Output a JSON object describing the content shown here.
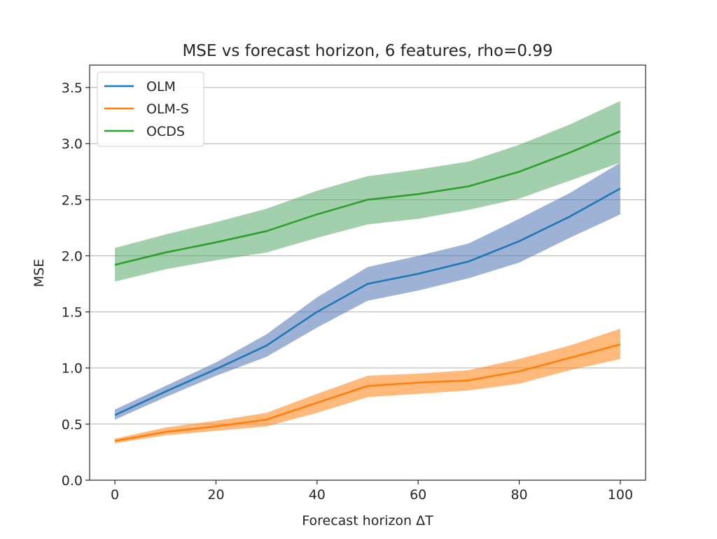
{
  "chart_data": {
    "type": "line",
    "title": "MSE vs forecast horizon, 6 features, rho=0.99",
    "xlabel": "Forecast horizon ΔT",
    "ylabel": "MSE",
    "xlim": [
      -5,
      105
    ],
    "ylim": [
      0,
      3.7
    ],
    "xticks": [
      0,
      20,
      40,
      60,
      80,
      100
    ],
    "yticks": [
      0.0,
      0.5,
      1.0,
      1.5,
      2.0,
      2.5,
      3.0,
      3.5
    ],
    "xtick_labels": [
      "0",
      "20",
      "40",
      "60",
      "80",
      "100"
    ],
    "ytick_labels": [
      "0.0",
      "0.5",
      "1.0",
      "1.5",
      "2.0",
      "2.5",
      "3.0",
      "3.5"
    ],
    "grid": "horizontal",
    "legend_position": "top-left",
    "x": [
      0,
      10,
      20,
      30,
      40,
      50,
      60,
      70,
      80,
      90,
      100
    ],
    "series": [
      {
        "name": "OLM",
        "color": "#1f77b4",
        "band_color": "#4c72b0",
        "values": [
          0.58,
          0.79,
          0.99,
          1.2,
          1.5,
          1.75,
          1.84,
          1.95,
          2.13,
          2.35,
          2.6
        ],
        "lower": [
          0.54,
          0.74,
          0.93,
          1.1,
          1.36,
          1.6,
          1.69,
          1.8,
          1.94,
          2.16,
          2.37
        ],
        "upper": [
          0.63,
          0.84,
          1.05,
          1.3,
          1.63,
          1.9,
          2.0,
          2.11,
          2.33,
          2.56,
          2.83
        ]
      },
      {
        "name": "OLM-S",
        "color": "#ff7f0e",
        "band_color": "#ff7f0e",
        "values": [
          0.35,
          0.43,
          0.48,
          0.54,
          0.69,
          0.84,
          0.87,
          0.89,
          0.97,
          1.09,
          1.21
        ],
        "lower": [
          0.33,
          0.4,
          0.44,
          0.48,
          0.6,
          0.74,
          0.77,
          0.8,
          0.86,
          0.98,
          1.08
        ],
        "upper": [
          0.37,
          0.47,
          0.53,
          0.6,
          0.77,
          0.93,
          0.95,
          0.98,
          1.08,
          1.2,
          1.35
        ]
      },
      {
        "name": "OCDS",
        "color": "#2ca02c",
        "band_color": "#55a868",
        "values": [
          1.92,
          2.03,
          2.12,
          2.22,
          2.37,
          2.5,
          2.55,
          2.62,
          2.75,
          2.92,
          3.11
        ],
        "lower": [
          1.77,
          1.88,
          1.96,
          2.03,
          2.16,
          2.28,
          2.33,
          2.41,
          2.51,
          2.67,
          2.83
        ],
        "upper": [
          2.07,
          2.19,
          2.3,
          2.42,
          2.58,
          2.71,
          2.77,
          2.84,
          2.99,
          3.17,
          3.38
        ]
      }
    ]
  }
}
